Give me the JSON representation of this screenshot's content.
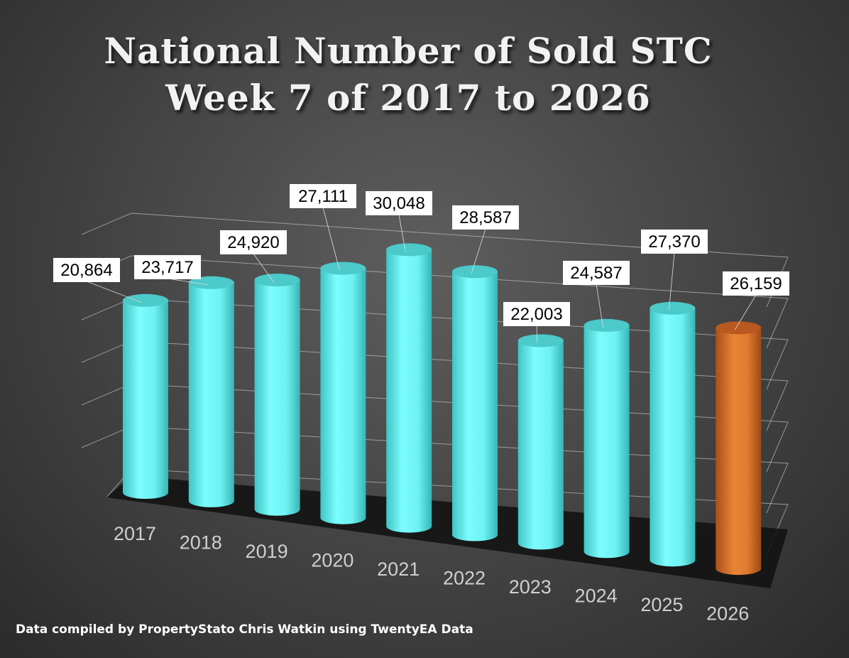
{
  "chart_data": {
    "type": "bar",
    "style": "3d-cylinder",
    "title": "National Number of  Sold STC",
    "subtitle": "Week 7 of 2017 to 2026",
    "xlabel": "",
    "ylabel": "",
    "categories": [
      "2017",
      "2018",
      "2019",
      "2020",
      "2021",
      "2022",
      "2023",
      "2024",
      "2025",
      "2026"
    ],
    "values": [
      20864,
      23717,
      24920,
      27111,
      30048,
      28587,
      22003,
      24587,
      27370,
      26159
    ],
    "data_labels": [
      "20,864",
      "23,717",
      "24,920",
      "27,111",
      "30,048",
      "28,587",
      "22,003",
      "24,587",
      "27,370",
      "26,159"
    ],
    "highlight_index": 9,
    "colors": {
      "bar": "#6ff5f5",
      "highlight": "#e0782e"
    },
    "grid": true
  },
  "footer": "Data compiled by PropertyStato Chris Watkin using TwentyEA Data"
}
